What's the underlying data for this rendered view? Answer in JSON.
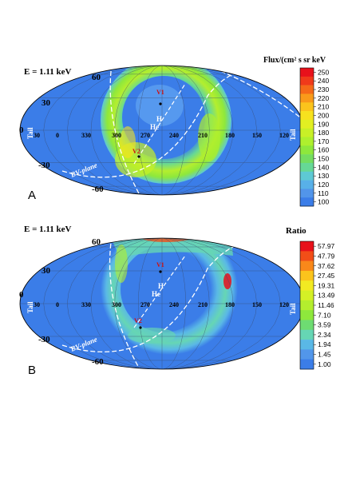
{
  "chart_data": [
    {
      "type": "heatmap",
      "panel_label": "A",
      "energy_label": "E = 1.11 keV",
      "colorbar_title": "Flux/(cm² s sr keV",
      "colorbar_ticks": [
        "250",
        "240",
        "230",
        "220",
        "210",
        "200",
        "190",
        "180",
        "170",
        "160",
        "150",
        "140",
        "130",
        "120",
        "110",
        "100"
      ],
      "lat_labels": [
        "60",
        "30",
        "0",
        "-30",
        "-60"
      ],
      "lon_labels": [
        "30",
        "0",
        "330",
        "300",
        "270",
        "240",
        "210",
        "180",
        "150",
        "120"
      ],
      "annotations": {
        "tail_left": "Tail",
        "tail_right": "Tail",
        "bv_plane": "BV-plane",
        "v1": "V1",
        "v2": "V2",
        "h": "H",
        "he": "He",
        "other": "Tail"
      }
    },
    {
      "type": "heatmap",
      "panel_label": "B",
      "energy_label": "E = 1.11 keV",
      "colorbar_title": "Ratio",
      "colorbar_ticks": [
        "57.97",
        "47.79",
        "37.62",
        "27.45",
        "19.31",
        "13.49",
        "11.46",
        "7.10",
        "3.59",
        "2.34",
        "1.94",
        "1.45",
        "1.00"
      ],
      "lat_labels": [
        "60",
        "30",
        "0",
        "-30",
        "-60"
      ],
      "lon_labels": [
        "30",
        "0",
        "330",
        "300",
        "270",
        "240",
        "210",
        "180",
        "150",
        "120"
      ],
      "annotations": {
        "tail_left": "Tail",
        "tail_right": "Tail",
        "bv_plane": "BV-plane",
        "v1": "V1",
        "v2": "V2",
        "h": "H",
        "he": "He",
        "other": "Tail"
      }
    }
  ],
  "colors": {
    "background_blue": "#3b7de8",
    "colorbar_a": [
      "#e8111b",
      "#f03a1a",
      "#f56a18",
      "#f99a1a",
      "#fbc41c",
      "#f7e21e",
      "#e2ef22",
      "#c8f027",
      "#aef02e",
      "#8ee83c",
      "#74dd60",
      "#66d896",
      "#5ec9d4",
      "#58b0e8",
      "#5295ea",
      "#3b7de8"
    ],
    "colorbar_b": [
      "#e8111b",
      "#f24e18",
      "#f9881a",
      "#fbc41c",
      "#f2ea22",
      "#d4f026",
      "#b4ee2e",
      "#8ee83c",
      "#6edc72",
      "#66d6b4",
      "#5ab8e6",
      "#5296ea",
      "#3b7de8"
    ]
  }
}
